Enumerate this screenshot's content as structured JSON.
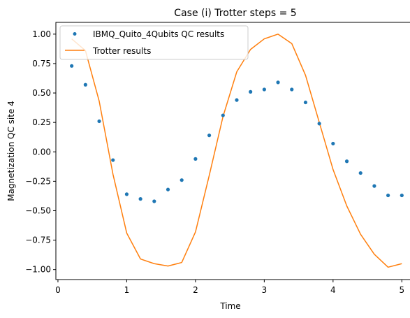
{
  "chart_data": {
    "type": "line",
    "title": "Case (i) Trotter steps = 5",
    "xlabel": "Time",
    "ylabel": "Magnetization QC site 4",
    "xlim": [
      -0.03,
      5.2
    ],
    "ylim": [
      -1.085,
      1.1
    ],
    "x_ticks": [
      0,
      1,
      2,
      3,
      4,
      5
    ],
    "x_tick_labels": [
      "0",
      "1",
      "2",
      "3",
      "4",
      "5"
    ],
    "y_ticks": [
      1.0,
      0.75,
      0.5,
      0.25,
      0.0,
      -0.25,
      -0.5,
      -0.75,
      -1.0
    ],
    "y_tick_labels": [
      "1.00",
      "0.75",
      "0.50",
      "0.25",
      "0.00",
      "−0.25",
      "−0.50",
      "−0.75",
      "−1.00"
    ],
    "grid": false,
    "legend_position": "top-left",
    "series": [
      {
        "name": "IBMQ_Quito_4Qubits QC results",
        "kind": "scatter",
        "color": "#1f77b4",
        "x": [
          0.2,
          0.4,
          0.6,
          0.8,
          1.0,
          1.2,
          1.4,
          1.6,
          1.8,
          2.0,
          2.2,
          2.4,
          2.6,
          2.8,
          3.0,
          3.2,
          3.4,
          3.6,
          3.8,
          4.0,
          4.2,
          4.4,
          4.6,
          4.8,
          5.0
        ],
        "y": [
          0.73,
          0.57,
          0.26,
          -0.07,
          -0.36,
          -0.4,
          -0.42,
          -0.32,
          -0.24,
          -0.06,
          0.14,
          0.31,
          0.44,
          0.51,
          0.53,
          0.59,
          0.53,
          0.42,
          0.24,
          0.07,
          -0.08,
          -0.18,
          -0.29,
          -0.37,
          -0.37
        ]
      },
      {
        "name": "Trotter results",
        "kind": "line",
        "color": "#ff7f0e",
        "x": [
          0.2,
          0.4,
          0.6,
          0.8,
          1.0,
          1.2,
          1.4,
          1.6,
          1.8,
          2.0,
          2.2,
          2.4,
          2.6,
          2.8,
          3.0,
          3.2,
          3.4,
          3.6,
          3.8,
          4.0,
          4.2,
          4.4,
          4.6,
          4.8,
          5.0
        ],
        "y": [
          0.96,
          0.86,
          0.43,
          -0.19,
          -0.69,
          -0.91,
          -0.95,
          -0.97,
          -0.94,
          -0.68,
          -0.2,
          0.3,
          0.68,
          0.87,
          0.96,
          1.0,
          0.92,
          0.65,
          0.25,
          -0.15,
          -0.46,
          -0.7,
          -0.87,
          -0.98,
          -0.95
        ]
      }
    ]
  }
}
